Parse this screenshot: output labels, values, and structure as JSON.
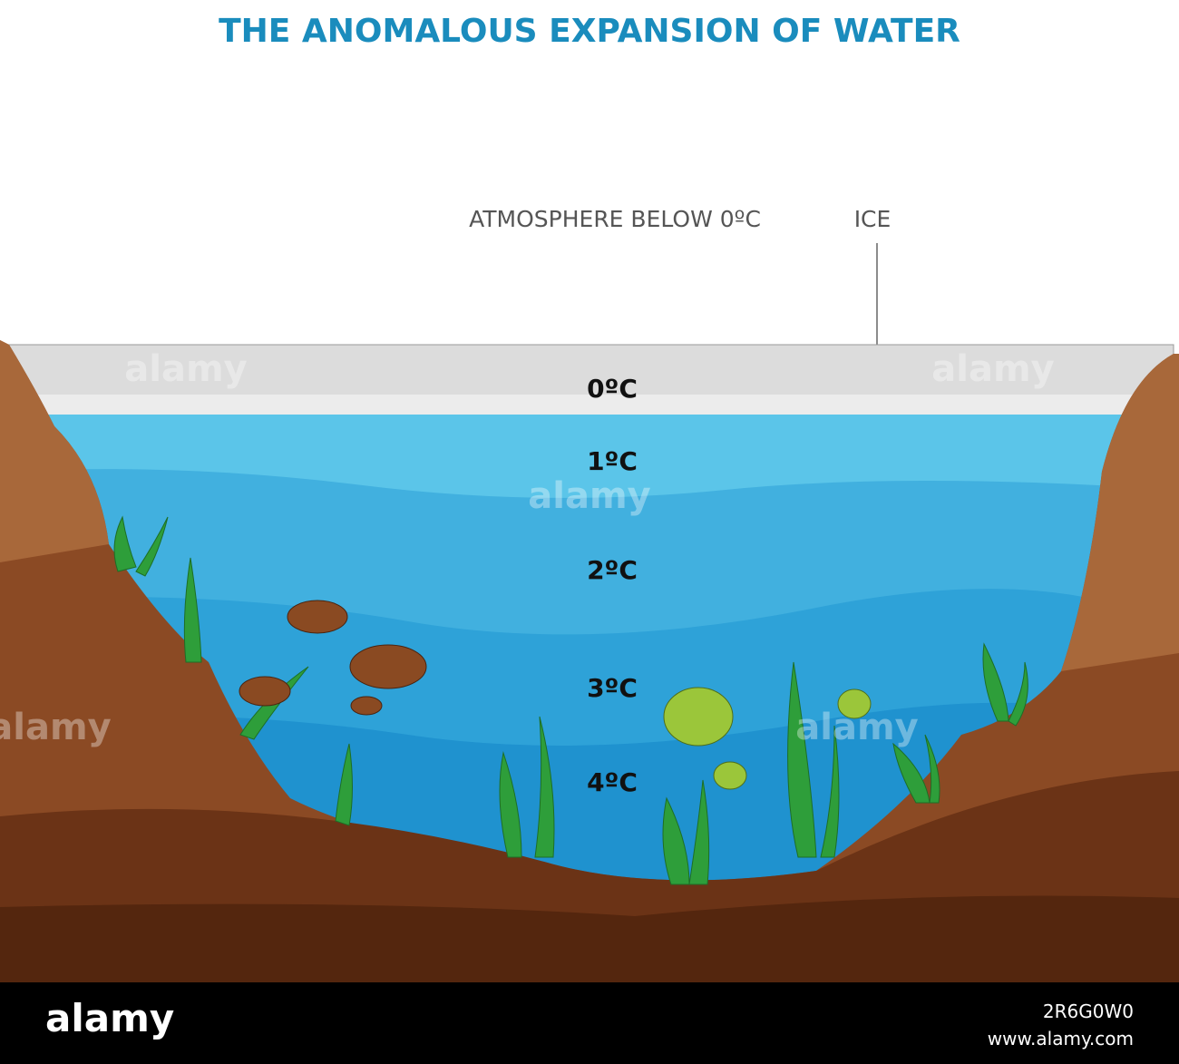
{
  "title": "THE ANOMALOUS EXPANSION OF WATER",
  "labels": {
    "atmosphere": "ATMOSPHERE BELOW 0ºC",
    "ice": "ICE"
  },
  "layers": [
    "0ºC",
    "1ºC",
    "2ºC",
    "3ºC",
    "4ºC"
  ],
  "watermark": {
    "brand": "alamy",
    "image_id": "2R6G0W0",
    "url": "www.alamy.com"
  }
}
